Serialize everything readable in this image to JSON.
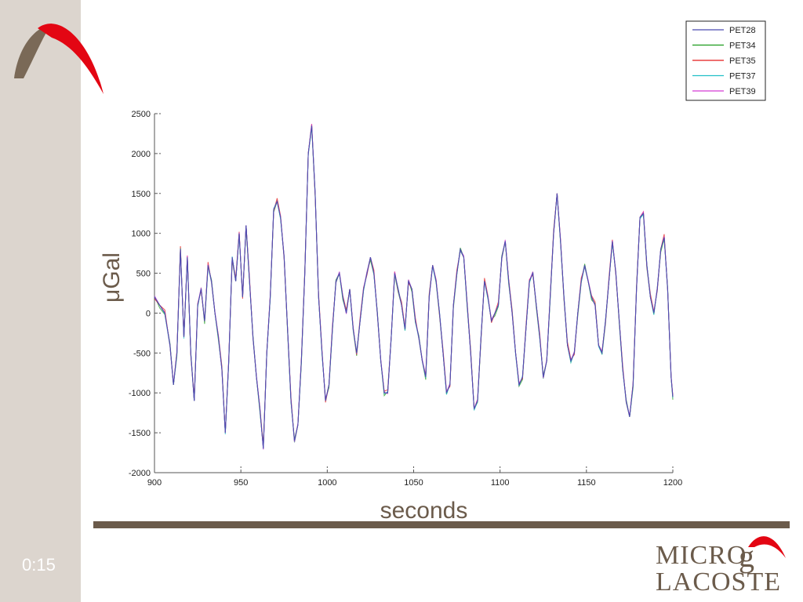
{
  "timer": "0:15",
  "brand": {
    "line1": "MICRO",
    "g": "g",
    "line2": "LACOSTE"
  },
  "colors": {
    "sidebar": "#dcd5ce",
    "brown": "#6b5b4b",
    "accent_red": "#e30613"
  },
  "chart_data": {
    "type": "line",
    "xlabel": "seconds",
    "ylabel": "μGal",
    "xlim": [
      900,
      1200
    ],
    "ylim": [
      -2000,
      2500
    ],
    "xticks": [
      900,
      950,
      1000,
      1050,
      1100,
      1150,
      1200
    ],
    "yticks": [
      2500,
      2000,
      1500,
      1000,
      500,
      0,
      -500,
      -1000,
      -1500,
      -2000
    ],
    "grid": false,
    "legend": "top-right",
    "x": [
      900,
      903,
      906,
      909,
      911,
      913,
      915,
      917,
      919,
      921,
      923,
      925,
      927,
      929,
      931,
      933,
      935,
      937,
      939,
      941,
      943,
      945,
      947,
      949,
      951,
      953,
      955,
      957,
      959,
      961,
      963,
      965,
      967,
      969,
      971,
      973,
      975,
      977,
      979,
      981,
      983,
      985,
      987,
      989,
      991,
      993,
      995,
      997,
      999,
      1001,
      1003,
      1005,
      1007,
      1009,
      1011,
      1013,
      1015,
      1017,
      1019,
      1021,
      1023,
      1025,
      1027,
      1029,
      1031,
      1033,
      1035,
      1037,
      1039,
      1041,
      1043,
      1045,
      1047,
      1049,
      1051,
      1053,
      1055,
      1057,
      1059,
      1061,
      1063,
      1065,
      1067,
      1069,
      1071,
      1073,
      1075,
      1077,
      1079,
      1081,
      1083,
      1085,
      1087,
      1089,
      1091,
      1093,
      1095,
      1097,
      1099,
      1101,
      1103,
      1105,
      1107,
      1109,
      1111,
      1113,
      1115,
      1117,
      1119,
      1121,
      1123,
      1125,
      1127,
      1129,
      1131,
      1133,
      1135,
      1137,
      1139,
      1141,
      1143,
      1145,
      1147,
      1149,
      1151,
      1153,
      1155,
      1157,
      1159,
      1161,
      1163,
      1165,
      1167,
      1169,
      1171,
      1173,
      1175,
      1177,
      1179,
      1181,
      1183,
      1185,
      1187,
      1189,
      1191,
      1193,
      1195,
      1197,
      1199,
      1200
    ],
    "series": [
      {
        "name": "PET28",
        "color": "#4b4bb0",
        "offset": 0
      },
      {
        "name": "PET34",
        "color": "#1a9a1a",
        "offset": -35
      },
      {
        "name": "PET35",
        "color": "#e31a1a",
        "offset": 40
      },
      {
        "name": "PET37",
        "color": "#22c0c8",
        "offset": -20
      },
      {
        "name": "PET39",
        "color": "#d43bd4",
        "offset": 20
      }
    ],
    "values": [
      200,
      100,
      0,
      -400,
      -900,
      -500,
      800,
      -300,
      700,
      -500,
      -1100,
      100,
      300,
      -100,
      600,
      400,
      0,
      -300,
      -700,
      -1500,
      -600,
      700,
      400,
      1000,
      200,
      1100,
      400,
      -300,
      -800,
      -1200,
      -1700,
      -500,
      200,
      1300,
      1400,
      1200,
      700,
      -200,
      -1100,
      -1600,
      -1400,
      -600,
      500,
      2000,
      2350,
      1500,
      200,
      -500,
      -1100,
      -900,
      -200,
      400,
      500,
      200,
      0,
      300,
      -200,
      -500,
      -100,
      300,
      500,
      700,
      500,
      0,
      -600,
      -1000,
      -1000,
      -300,
      500,
      300,
      100,
      -200,
      400,
      300,
      -100,
      -300,
      -600,
      -800,
      200,
      600,
      400,
      0,
      -500,
      -1000,
      -900,
      100,
      500,
      800,
      700,
      100,
      -500,
      -1200,
      -1100,
      -300,
      400,
      200,
      -100,
      0,
      100,
      700,
      900,
      400,
      0,
      -500,
      -900,
      -800,
      -200,
      400,
      500,
      100,
      -300,
      -800,
      -600,
      200,
      1000,
      1500,
      900,
      200,
      -400,
      -600,
      -500,
      0,
      400,
      600,
      400,
      200,
      100,
      -400,
      -500,
      -100,
      400,
      900,
      500,
      -100,
      -700,
      -1100,
      -1300,
      -900,
      300,
      1200,
      1250,
      600,
      200,
      0,
      300,
      800,
      950,
      300,
      -800,
      -1050
    ]
  }
}
